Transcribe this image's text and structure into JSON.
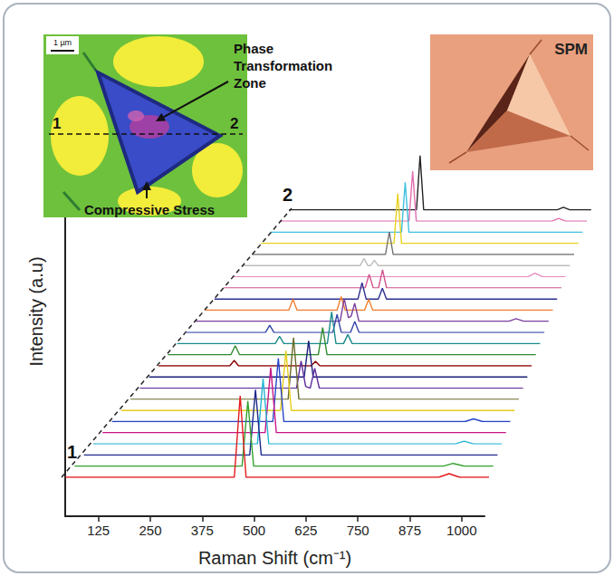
{
  "chart_data": {
    "type": "line",
    "x_label": "Raman Shift (cm⁻¹)",
    "y_label": "Intensity (a.u)",
    "xlim": [
      45,
      1055
    ],
    "xticks": [
      125,
      250,
      375,
      500,
      625,
      750,
      875,
      1000
    ],
    "ylim": [
      0,
      100
    ],
    "tick_labels": "x",
    "grid": false,
    "annotations": [
      "1",
      "2"
    ],
    "insets": [
      {
        "scale_bar": "1 µm",
        "markers": [
          "1",
          "2"
        ],
        "labels": [
          "Phase Transformation Zone",
          "Compressive Stress"
        ]
      },
      {
        "label": "SPM"
      }
    ],
    "series": [
      {
        "color": "#e31a1c",
        "x": [
          45,
          448,
          462,
          476,
          935,
          960,
          985,
          1055
        ],
        "values": [
          0,
          0,
          90,
          0,
          0,
          4,
          0,
          0
        ]
      },
      {
        "color": "#33a02c",
        "x": [
          45,
          449,
          463,
          477,
          935,
          958,
          985,
          1055
        ],
        "values": [
          0,
          0,
          72,
          0,
          0,
          3,
          0,
          0
        ]
      },
      {
        "color": "#1f2a8a",
        "x": [
          45,
          450,
          464,
          478,
          1055
        ],
        "values": [
          0,
          0,
          72,
          0,
          0
        ]
      },
      {
        "color": "#26b5d4",
        "x": [
          45,
          451,
          465,
          479,
          940,
          962,
          985,
          1055
        ],
        "values": [
          0,
          0,
          72,
          0,
          0,
          3,
          0,
          0
        ]
      },
      {
        "color": "#c71585",
        "x": [
          45,
          452,
          466,
          480,
          1055
        ],
        "values": [
          0,
          0,
          72,
          0,
          0
        ]
      },
      {
        "color": "#2846c8",
        "x": [
          45,
          453,
          467,
          481,
          940,
          962,
          985,
          1055
        ],
        "values": [
          0,
          0,
          70,
          0,
          0,
          3,
          0,
          0
        ]
      },
      {
        "color": "#e6cc1a",
        "x": [
          45,
          454,
          468,
          482,
          1055
        ],
        "values": [
          0,
          0,
          66,
          0,
          0
        ]
      },
      {
        "color": "#6b6b2a",
        "x": [
          45,
          455,
          469,
          483,
          1055
        ],
        "values": [
          0,
          0,
          68,
          0,
          0
        ]
      },
      {
        "color": "#5b2a9b",
        "x": [
          45,
          458,
          470,
          482,
          494,
          506,
          518,
          1055
        ],
        "values": [
          0,
          0,
          30,
          2,
          0,
          22,
          0,
          0
        ]
      },
      {
        "color": "#1b1f7a",
        "x": [
          45,
          459,
          471,
          483,
          1055
        ],
        "values": [
          0,
          0,
          40,
          0,
          0
        ]
      },
      {
        "color": "#8b0000",
        "x": [
          45,
          238,
          250,
          262,
          458,
          470,
          482,
          1055
        ],
        "values": [
          0,
          0,
          6,
          0,
          0,
          5,
          0,
          0
        ]
      },
      {
        "color": "#2e8b2e",
        "x": [
          45,
          218,
          230,
          242,
          458,
          470,
          482,
          1055
        ],
        "values": [
          0,
          0,
          10,
          0,
          0,
          30,
          0,
          0
        ]
      },
      {
        "color": "#1b8a8a",
        "x": [
          45,
          318,
          330,
          342,
          463,
          475,
          487,
          508,
          520,
          532,
          1055
        ],
        "values": [
          0,
          0,
          8,
          0,
          0,
          35,
          0,
          0,
          10,
          0,
          0
        ]
      },
      {
        "color": "#3344aa",
        "x": [
          45,
          268,
          280,
          292,
          458,
          470,
          482,
          508,
          520,
          532,
          1055
        ],
        "values": [
          0,
          0,
          8,
          0,
          0,
          20,
          0,
          0,
          12,
          0,
          0
        ]
      },
      {
        "color": "#7b3fa0",
        "x": [
          45,
          458,
          470,
          482,
          490,
          500,
          512,
          940,
          962,
          985,
          1055
        ],
        "values": [
          0,
          0,
          25,
          4,
          6,
          20,
          0,
          0,
          3,
          0,
          0
        ]
      },
      {
        "color": "#f08030",
        "x": [
          45,
          288,
          300,
          312,
          428,
          440,
          452,
          508,
          520,
          532,
          1055
        ],
        "values": [
          0,
          0,
          12,
          0,
          0,
          15,
          0,
          0,
          12,
          0,
          0
        ]
      },
      {
        "color": "#2a2f8f",
        "x": [
          45,
          468,
          480,
          492,
          528,
          540,
          552,
          1055
        ],
        "values": [
          0,
          0,
          18,
          0,
          0,
          12,
          0,
          0
        ]
      },
      {
        "color": "#d0508a",
        "x": [
          45,
          468,
          480,
          492,
          508,
          520,
          532,
          1055
        ],
        "values": [
          0,
          0,
          15,
          0,
          0,
          20,
          0,
          0
        ]
      },
      {
        "color": "#e58fc0",
        "x": [
          45,
          940,
          962,
          985,
          1055
        ],
        "values": [
          0,
          0,
          4,
          0,
          0
        ]
      },
      {
        "color": "#bdbdbd",
        "x": [
          45,
          408,
          420,
          432,
          440,
          452,
          464,
          1055
        ],
        "values": [
          0,
          0,
          8,
          0,
          0,
          6,
          0,
          0
        ]
      },
      {
        "color": "#707070",
        "x": [
          45,
          464,
          476,
          488,
          1055
        ],
        "values": [
          0,
          0,
          25,
          0,
          0
        ]
      },
      {
        "color": "#e8d21c",
        "x": [
          45,
          468,
          480,
          492,
          1055
        ],
        "values": [
          0,
          0,
          55,
          0,
          0
        ]
      },
      {
        "color": "#3fc0e0",
        "x": [
          45,
          469,
          481,
          493,
          1055
        ],
        "values": [
          0,
          0,
          55,
          0,
          0
        ]
      },
      {
        "color": "#e070b0",
        "x": [
          45,
          470,
          482,
          494,
          940,
          962,
          985,
          1055
        ],
        "values": [
          0,
          0,
          55,
          0,
          0,
          3,
          0,
          0
        ]
      },
      {
        "color": "#222222",
        "x": [
          45,
          471,
          483,
          495,
          940,
          962,
          985,
          1055
        ],
        "values": [
          0,
          0,
          60,
          0,
          0,
          3,
          0,
          0
        ]
      }
    ]
  }
}
